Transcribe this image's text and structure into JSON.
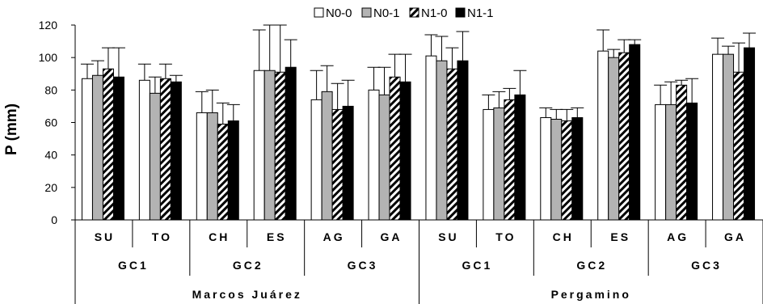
{
  "chart_data": {
    "type": "bar",
    "title": "",
    "xlabel": "",
    "ylabel": "P (mm)",
    "ylim": [
      0,
      120
    ],
    "yticks": [
      0,
      20,
      40,
      60,
      80,
      100,
      120
    ],
    "grid": false,
    "legend_position": "top",
    "categories": [
      "SU",
      "TO",
      "CH",
      "ES",
      "AG",
      "GA",
      "SU",
      "TO",
      "CH",
      "ES",
      "AG",
      "GA"
    ],
    "groups_level2": [
      {
        "label": "GC1",
        "span": 2
      },
      {
        "label": "GC2",
        "span": 2
      },
      {
        "label": "GC3",
        "span": 2
      },
      {
        "label": "GC1",
        "span": 2
      },
      {
        "label": "GC2",
        "span": 2
      },
      {
        "label": "GC3",
        "span": 2
      }
    ],
    "groups_level3": [
      {
        "label": "Marcos Juárez",
        "span": 6
      },
      {
        "label": "Pergamino",
        "span": 6
      }
    ],
    "series": [
      {
        "name": "N0-0",
        "fill": "white",
        "values": [
          87,
          86,
          66,
          92,
          74,
          80,
          101,
          68,
          63,
          104,
          71,
          102
        ],
        "errors": [
          9,
          10,
          13,
          25,
          18,
          14,
          13,
          9,
          6,
          13,
          12,
          10
        ]
      },
      {
        "name": "N0-1",
        "fill": "gray",
        "values": [
          89,
          78,
          66,
          92,
          79,
          77,
          98,
          69,
          62,
          100,
          71,
          102
        ],
        "errors": [
          9,
          10,
          14,
          28,
          16,
          17,
          15,
          10,
          6,
          5,
          14,
          5
        ]
      },
      {
        "name": "N1-0",
        "fill": "hatched",
        "values": [
          93,
          87,
          59,
          91,
          68,
          88,
          93,
          74,
          61,
          103,
          83,
          91
        ],
        "errors": [
          13,
          9,
          13,
          29,
          16,
          14,
          13,
          7,
          7,
          8,
          3,
          18
        ]
      },
      {
        "name": "N1-1",
        "fill": "black",
        "values": [
          88,
          85,
          61,
          94,
          70,
          85,
          98,
          77,
          63,
          108,
          72,
          106
        ],
        "errors": [
          18,
          4,
          10,
          17,
          16,
          17,
          18,
          15,
          6,
          3,
          15,
          9
        ]
      }
    ],
    "colors": {
      "white": "#ffffff",
      "gray": "#b3b3b3",
      "black": "#000000",
      "stroke": "#000000"
    }
  }
}
